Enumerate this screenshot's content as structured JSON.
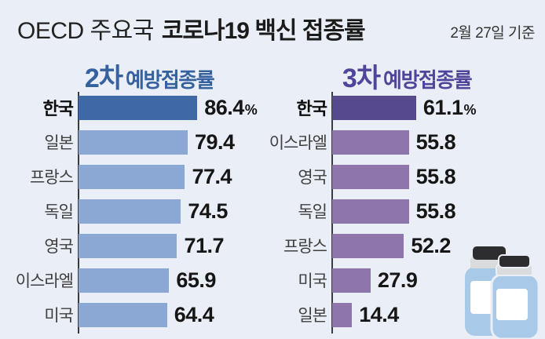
{
  "title": {
    "prefix": "OECD 주요국",
    "main": "코로나19 백신 접종률",
    "date_note": "2월 27일 기준"
  },
  "colors": {
    "background": "#eaeef6",
    "axis": "#3b3b3b",
    "value_text": "#161616",
    "label_text": "#3f3f3f"
  },
  "charts": [
    {
      "heading_number": "2차",
      "heading_rest": "예방접종률",
      "heading_color": "#35619f",
      "bar_color": "#8ba7d3",
      "highlight_bar_color": "#3e68a6",
      "unit": "%",
      "rows": [
        {
          "label": "한국",
          "value": 86.4,
          "highlight": true,
          "show_unit": true
        },
        {
          "label": "일본",
          "value": 79.4,
          "highlight": false,
          "show_unit": false
        },
        {
          "label": "프랑스",
          "value": 77.4,
          "highlight": false,
          "show_unit": false
        },
        {
          "label": "독일",
          "value": 74.5,
          "highlight": false,
          "show_unit": false
        },
        {
          "label": "영국",
          "value": 71.7,
          "highlight": false,
          "show_unit": false
        },
        {
          "label": "이스라엘",
          "value": 65.9,
          "highlight": false,
          "show_unit": false
        },
        {
          "label": "미국",
          "value": 64.4,
          "highlight": false,
          "show_unit": false
        }
      ]
    },
    {
      "heading_number": "3차",
      "heading_rest": "예방접종률",
      "heading_color": "#50459a",
      "bar_color": "#8e76ad",
      "highlight_bar_color": "#564a8d",
      "unit": "%",
      "rows": [
        {
          "label": "한국",
          "value": 61.1,
          "highlight": true,
          "show_unit": true
        },
        {
          "label": "이스라엘",
          "value": 55.8,
          "highlight": false,
          "show_unit": false
        },
        {
          "label": "영국",
          "value": 55.8,
          "highlight": false,
          "show_unit": false
        },
        {
          "label": "독일",
          "value": 55.8,
          "highlight": false,
          "show_unit": false
        },
        {
          "label": "프랑스",
          "value": 52.2,
          "highlight": false,
          "show_unit": false
        },
        {
          "label": "미국",
          "value": 27.9,
          "highlight": false,
          "show_unit": false
        },
        {
          "label": "일본",
          "value": 14.4,
          "highlight": false,
          "show_unit": false
        }
      ]
    }
  ],
  "illustration": {
    "name": "vaccine-vials",
    "body_color": "#a9c9e8",
    "cap_color": "#2d2d2f",
    "band_color": "#d9dbdd",
    "label_color": "#ffffff",
    "outline_color": "#eaeef6"
  },
  "chart_data": [
    {
      "type": "bar",
      "orientation": "horizontal",
      "title": "2차 예방접종률",
      "categories": [
        "한국",
        "일본",
        "프랑스",
        "독일",
        "영국",
        "이스라엘",
        "미국"
      ],
      "values": [
        86.4,
        79.4,
        77.4,
        74.5,
        71.7,
        65.9,
        64.4
      ],
      "unit": "%",
      "xlim": [
        0,
        90
      ],
      "grid": false,
      "legend": false,
      "highlight_category": "한국",
      "annotation": "values shown as data labels at bar ends; % sign only on first bar"
    },
    {
      "type": "bar",
      "orientation": "horizontal",
      "title": "3차 예방접종률",
      "categories": [
        "한국",
        "이스라엘",
        "영국",
        "독일",
        "프랑스",
        "미국",
        "일본"
      ],
      "values": [
        61.1,
        55.8,
        55.8,
        55.8,
        52.2,
        27.9,
        14.4
      ],
      "unit": "%",
      "xlim": [
        0,
        90
      ],
      "grid": false,
      "legend": false,
      "highlight_category": "한국",
      "annotation": "values shown as data labels at bar ends; % sign only on first bar"
    }
  ]
}
